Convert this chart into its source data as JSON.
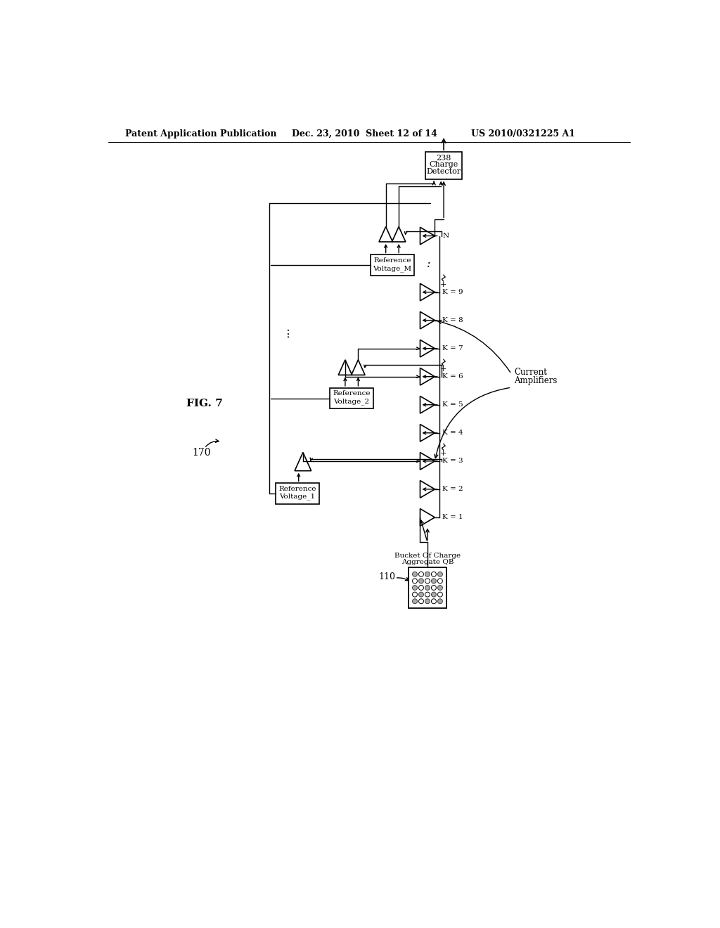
{
  "title_left": "Patent Application Publication",
  "title_mid": "Dec. 23, 2010  Sheet 12 of 14",
  "title_right": "US 2010/0321225 A1",
  "fig_label": "FIG. 7",
  "background_color": "#ffffff",
  "text_color": "#000000"
}
